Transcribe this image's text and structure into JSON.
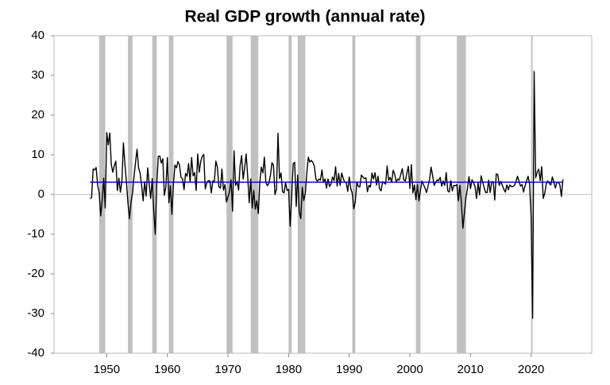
{
  "chart_data": {
    "type": "line",
    "title": "Real GDP growth (annual rate)",
    "x": [
      1947.25,
      1947.5,
      1947.75,
      1948,
      1948.25,
      1948.5,
      1948.75,
      1949,
      1949.25,
      1949.5,
      1949.75,
      1950,
      1950.25,
      1950.5,
      1950.75,
      1951,
      1951.25,
      1951.5,
      1951.75,
      1952,
      1952.25,
      1952.5,
      1952.75,
      1953,
      1953.25,
      1953.5,
      1953.75,
      1954,
      1954.25,
      1954.5,
      1954.75,
      1955,
      1955.25,
      1955.5,
      1955.75,
      1956,
      1956.25,
      1956.5,
      1956.75,
      1957,
      1957.25,
      1957.5,
      1957.75,
      1958,
      1958.25,
      1958.5,
      1958.75,
      1959,
      1959.25,
      1959.5,
      1959.75,
      1960,
      1960.25,
      1960.5,
      1960.75,
      1961,
      1961.25,
      1961.5,
      1961.75,
      1962,
      1962.25,
      1962.5,
      1962.75,
      1963,
      1963.25,
      1963.5,
      1963.75,
      1964,
      1964.25,
      1964.5,
      1964.75,
      1965,
      1965.25,
      1965.5,
      1965.75,
      1966,
      1966.25,
      1966.5,
      1966.75,
      1967,
      1967.25,
      1967.5,
      1967.75,
      1968,
      1968.25,
      1968.5,
      1968.75,
      1969,
      1969.25,
      1969.5,
      1969.75,
      1970,
      1970.25,
      1970.5,
      1970.75,
      1971,
      1971.25,
      1971.5,
      1971.75,
      1972,
      1972.25,
      1972.5,
      1972.75,
      1973,
      1973.25,
      1973.5,
      1973.75,
      1974,
      1974.25,
      1974.5,
      1974.75,
      1975,
      1975.25,
      1975.5,
      1975.75,
      1976,
      1976.25,
      1976.5,
      1976.75,
      1977,
      1977.25,
      1977.5,
      1977.75,
      1978,
      1978.25,
      1978.5,
      1978.75,
      1979,
      1979.25,
      1979.5,
      1979.75,
      1980,
      1980.25,
      1980.5,
      1980.75,
      1981,
      1981.25,
      1981.5,
      1981.75,
      1982,
      1982.25,
      1982.5,
      1982.75,
      1983,
      1983.25,
      1983.5,
      1983.75,
      1984,
      1984.25,
      1984.5,
      1984.75,
      1985,
      1985.25,
      1985.5,
      1985.75,
      1986,
      1986.25,
      1986.5,
      1986.75,
      1987,
      1987.25,
      1987.5,
      1987.75,
      1988,
      1988.25,
      1988.5,
      1988.75,
      1989,
      1989.25,
      1989.5,
      1989.75,
      1990,
      1990.25,
      1990.5,
      1990.75,
      1991,
      1991.25,
      1991.5,
      1991.75,
      1992,
      1992.25,
      1992.5,
      1992.75,
      1993,
      1993.25,
      1993.5,
      1993.75,
      1994,
      1994.25,
      1994.5,
      1994.75,
      1995,
      1995.25,
      1995.5,
      1995.75,
      1996,
      1996.25,
      1996.5,
      1996.75,
      1997,
      1997.25,
      1997.5,
      1997.75,
      1998,
      1998.25,
      1998.5,
      1998.75,
      1999,
      1999.25,
      1999.5,
      1999.75,
      2000,
      2000.25,
      2000.5,
      2000.75,
      2001,
      2001.25,
      2001.5,
      2001.75,
      2002,
      2002.25,
      2002.5,
      2002.75,
      2003,
      2003.25,
      2003.5,
      2003.75,
      2004,
      2004.25,
      2004.5,
      2004.75,
      2005,
      2005.25,
      2005.5,
      2005.75,
      2006,
      2006.25,
      2006.5,
      2006.75,
      2007,
      2007.25,
      2007.5,
      2007.75,
      2008,
      2008.25,
      2008.5,
      2008.75,
      2009,
      2009.25,
      2009.5,
      2009.75,
      2010,
      2010.25,
      2010.5,
      2010.75,
      2011,
      2011.25,
      2011.5,
      2011.75,
      2012,
      2012.25,
      2012.5,
      2012.75,
      2013,
      2013.25,
      2013.5,
      2013.75,
      2014,
      2014.25,
      2014.5,
      2014.75,
      2015,
      2015.25,
      2015.5,
      2015.75,
      2016,
      2016.25,
      2016.5,
      2016.75,
      2017,
      2017.25,
      2017.5,
      2017.75,
      2018,
      2018.25,
      2018.5,
      2018.75,
      2019,
      2019.25,
      2019.5,
      2019.75,
      2020,
      2020.25,
      2020.5,
      2020.75,
      2021,
      2021.25,
      2021.5,
      2021.75,
      2022,
      2022.25,
      2022.5,
      2022.75,
      2023,
      2023.25,
      2023.5,
      2023.75,
      2024,
      2024.25,
      2024.5,
      2024.75,
      2025,
      2025.25
    ],
    "values": [
      -1.0,
      -0.8,
      6.4,
      6.2,
      6.8,
      2.3,
      0.5,
      -5.4,
      -1.4,
      4.1,
      -3.4,
      15.6,
      12.5,
      15.5,
      7.5,
      5.6,
      7.3,
      8.4,
      1.0,
      4.1,
      0.6,
      3.4,
      13.0,
      7.6,
      3.1,
      -2.2,
      -6.1,
      -1.9,
      0.4,
      4.6,
      8.1,
      11.4,
      6.7,
      5.4,
      2.4,
      -1.6,
      3.2,
      -0.4,
      6.7,
      2.6,
      -1.0,
      4.0,
      -4.1,
      -10.0,
      2.6,
      9.6,
      9.7,
      7.9,
      9.0,
      -0.2,
      1.8,
      9.3,
      -2.1,
      2.2,
      -5.0,
      2.7,
      7.4,
      6.7,
      8.3,
      7.4,
      4.3,
      4.0,
      1.2,
      5.3,
      4.6,
      7.8,
      3.2,
      9.3,
      4.7,
      5.5,
      1.0,
      10.2,
      5.6,
      8.3,
      9.6,
      10.1,
      1.4,
      2.9,
      3.5,
      3.4,
      0.4,
      3.4,
      3.3,
      8.4,
      6.9,
      1.9,
      1.6,
      6.4,
      1.1,
      2.5,
      -1.9,
      -0.6,
      0.7,
      3.7,
      -4.2,
      11.0,
      2.3,
      3.3,
      1.1,
      7.3,
      9.8,
      3.9,
      6.8,
      10.2,
      4.5,
      -2.1,
      3.9,
      -3.4,
      1.0,
      -3.7,
      -1.6,
      -4.8,
      3.1,
      6.9,
      5.4,
      9.4,
      3.0,
      2.2,
      2.9,
      4.8,
      8.0,
      7.4,
      0.0,
      1.3,
      15.4,
      4.0,
      5.4,
      0.7,
      0.4,
      3.0,
      1.0,
      1.3,
      -8.0,
      -0.5,
      7.7,
      8.1,
      -3.0,
      4.9,
      -4.3,
      -6.1,
      1.8,
      -1.5,
      0.2,
      5.4,
      9.4,
      8.2,
      8.6,
      8.1,
      7.1,
      3.9,
      3.3,
      3.9,
      3.6,
      6.2,
      3.1,
      3.9,
      1.6,
      3.9,
      2.0,
      2.7,
      4.4,
      3.5,
      7.0,
      2.1,
      5.3,
      2.3,
      5.4,
      4.1,
      3.1,
      3.0,
      0.8,
      4.4,
      1.5,
      0.3,
      -3.6,
      -1.9,
      3.2,
      2.0,
      1.9,
      4.9,
      4.4,
      4.0,
      4.2,
      0.7,
      2.3,
      1.9,
      5.4,
      3.9,
      5.5,
      2.4,
      4.6,
      1.4,
      0.9,
      3.2,
      2.9,
      2.6,
      7.2,
      3.6,
      4.3,
      3.1,
      6.1,
      5.1,
      3.1,
      3.9,
      3.6,
      5.1,
      6.5,
      3.7,
      3.4,
      5.3,
      7.1,
      1.5,
      7.5,
      0.4,
      2.4,
      -1.3,
      2.5,
      -1.6,
      1.1,
      3.4,
      2.5,
      1.6,
      0.5,
      2.1,
      3.8,
      6.9,
      4.8,
      2.3,
      3.0,
      3.7,
      3.5,
      4.3,
      2.1,
      3.4,
      2.3,
      5.5,
      0.9,
      0.6,
      3.5,
      0.9,
      2.3,
      2.2,
      2.5,
      -1.6,
      2.3,
      -2.1,
      -8.5,
      -4.6,
      -0.7,
      1.5,
      4.5,
      1.5,
      3.7,
      3.0,
      2.0,
      -1.0,
      2.9,
      -0.1,
      4.7,
      3.2,
      1.7,
      0.5,
      0.5,
      3.6,
      0.5,
      3.2,
      3.2,
      -1.4,
      5.2,
      5.0,
      2.3,
      3.3,
      2.3,
      1.3,
      0.6,
      2.4,
      1.2,
      2.4,
      2.0,
      2.0,
      2.3,
      3.2,
      4.6,
      3.3,
      2.1,
      2.5,
      0.6,
      2.2,
      3.4,
      4.6,
      2.6,
      -5.5,
      -31.2,
      31.0,
      4.2,
      5.6,
      6.4,
      3.5,
      7.0,
      -1.0,
      0.3,
      2.7,
      3.4,
      2.8,
      2.4,
      4.4,
      3.2,
      1.6,
      3.0,
      3.1,
      2.4,
      -0.5,
      3.8
    ],
    "color": "#000000",
    "reference_line": {
      "value": 3.1,
      "color": "#0000cc"
    },
    "recessions": [
      [
        1948.75,
        1949.75
      ],
      [
        1953.5,
        1954.25
      ],
      [
        1957.5,
        1958.25
      ],
      [
        1960.25,
        1961.0
      ],
      [
        1969.75,
        1970.75
      ],
      [
        1973.75,
        1975.0
      ],
      [
        1980.0,
        1980.5
      ],
      [
        1981.5,
        1982.75
      ],
      [
        1990.5,
        1991.0
      ],
      [
        2001.0,
        2001.75
      ],
      [
        2007.75,
        2009.25
      ],
      [
        2020.0,
        2020.25
      ]
    ],
    "recession_color": "#c0c0c0",
    "xlim": [
      1941.3,
      2030
    ],
    "xticks": [
      1950,
      1960,
      1970,
      1980,
      1990,
      2000,
      2010,
      2020
    ],
    "ylim": [
      -40,
      40
    ],
    "yticks": [
      -40,
      -30,
      -20,
      -10,
      0,
      10,
      20,
      30,
      40
    ],
    "grid": false
  }
}
